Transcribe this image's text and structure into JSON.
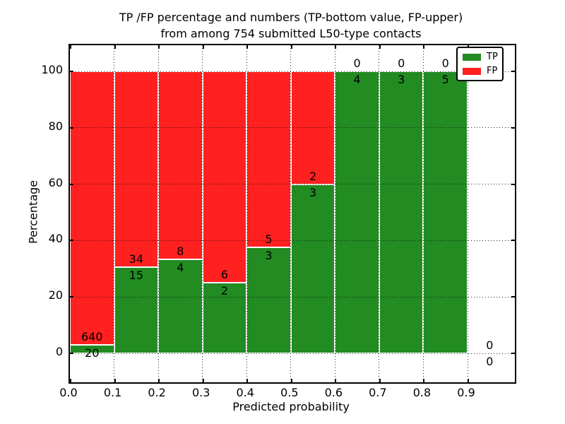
{
  "chart_data": {
    "type": "bar",
    "subtype": "stacked-percentage-histogram",
    "title_lines": [
      "TP /FP percentage and numbers (TP-bottom value, FP-upper)",
      "from among 754 submitted L50-type contacts"
    ],
    "xlabel": "Predicted probability",
    "ylabel": "Percentage",
    "total_submitted": 754,
    "bin_edges": [
      0.0,
      0.1,
      0.2,
      0.3,
      0.4,
      0.5,
      0.6,
      0.7,
      0.8,
      0.9,
      1.0
    ],
    "series": [
      {
        "name": "TP",
        "color": "#228B22",
        "counts": [
          20,
          15,
          4,
          2,
          3,
          3,
          4,
          3,
          5,
          0
        ]
      },
      {
        "name": "FP",
        "color": "#FF2020",
        "counts": [
          640,
          34,
          8,
          6,
          5,
          2,
          0,
          0,
          0,
          0
        ]
      }
    ],
    "tp_percentages": [
      3.0,
      30.6,
      33.3,
      25.0,
      37.5,
      60.0,
      100.0,
      100.0,
      100.0,
      null
    ],
    "xticks": [
      "0.0",
      "0.1",
      "0.2",
      "0.3",
      "0.4",
      "0.5",
      "0.6",
      "0.7",
      "0.8",
      "0.9"
    ],
    "yticks": [
      0,
      20,
      40,
      60,
      80,
      100
    ],
    "xlim": [
      0.0,
      1.007
    ],
    "ylim": [
      -10.3,
      109.3
    ],
    "grid": "dotted",
    "bar_edge_color": "#ffffff",
    "legend": {
      "position": "upper right",
      "entries": [
        {
          "label": "TP",
          "color": "#228B22"
        },
        {
          "label": "FP",
          "color": "#FF2020"
        }
      ]
    }
  }
}
